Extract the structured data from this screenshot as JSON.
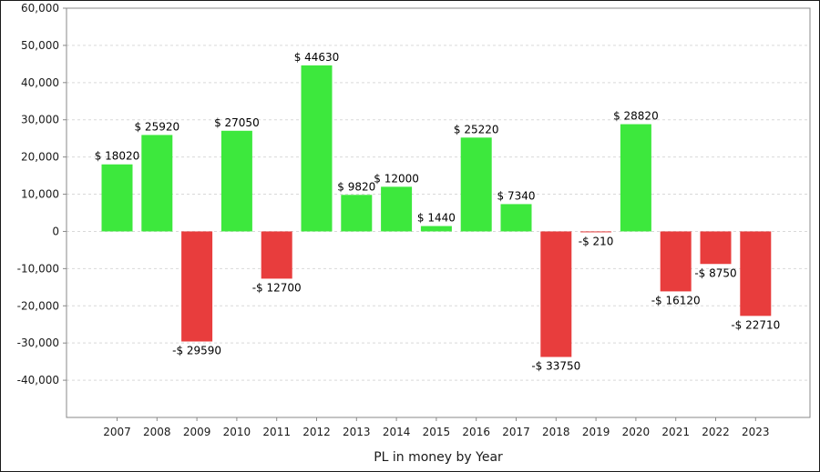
{
  "chart_data": {
    "type": "bar",
    "title": "",
    "xlabel": "PL in money by Year",
    "ylabel": "",
    "categories": [
      "2007",
      "2008",
      "2009",
      "2010",
      "2011",
      "2012",
      "2013",
      "2014",
      "2015",
      "2016",
      "2017",
      "2018",
      "2019",
      "2020",
      "2021",
      "2022",
      "2023"
    ],
    "values": [
      18020,
      25920,
      -29590,
      27050,
      -12700,
      44630,
      9820,
      12000,
      1440,
      25220,
      7340,
      -33750,
      -210,
      28820,
      -16120,
      -8750,
      -22710
    ],
    "data_labels": [
      "$ 18020",
      "$ 25920",
      "-$ 29590",
      "$ 27050",
      "-$ 12700",
      "$ 44630",
      "$ 9820",
      "$ 12000",
      "$ 1440",
      "$ 25220",
      "$ 7340",
      "-$ 33750",
      "-$ 210",
      "$ 28820",
      "-$ 16120",
      "-$ 8750",
      "-$ 22710"
    ],
    "ylim": [
      -50000,
      60000
    ],
    "yticks": [
      60000,
      50000,
      40000,
      30000,
      20000,
      10000,
      0,
      -10000,
      -20000,
      -30000,
      -40000
    ],
    "ytick_labels": [
      "60,000",
      "50,000",
      "40,000",
      "30,000",
      "20,000",
      "10,000",
      "0",
      "-10,000",
      "-20,000",
      "-30,000",
      "-40,000"
    ],
    "grid": true,
    "colors": {
      "positive": "#3de83d",
      "negative": "#e83d3d",
      "grid": "#d9d9d9",
      "axis": "#888888"
    }
  }
}
